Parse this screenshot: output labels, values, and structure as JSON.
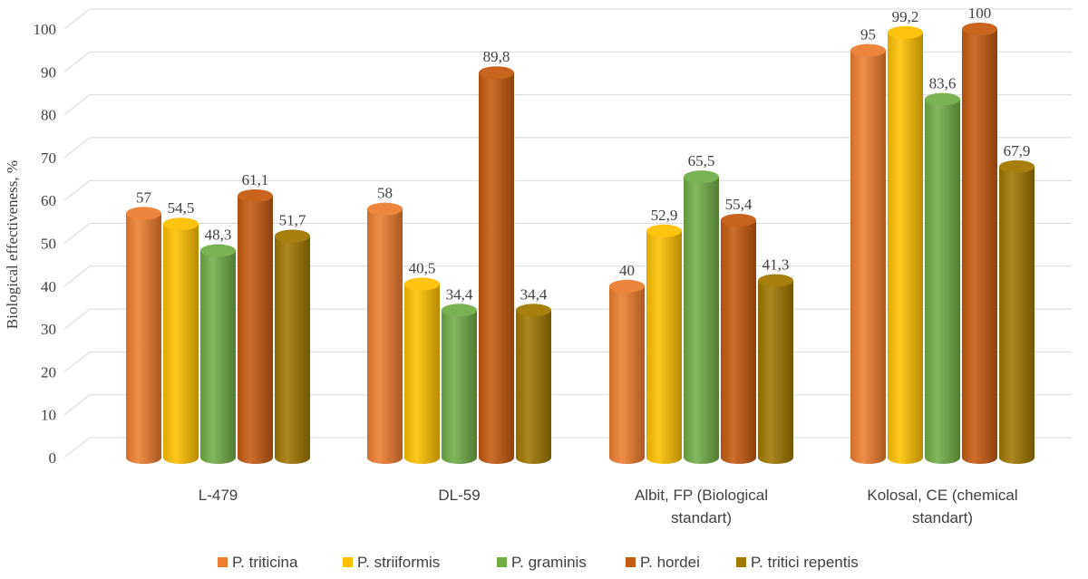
{
  "chart_data": {
    "type": "bar",
    "title": "",
    "xlabel": "",
    "ylabel": "Biological effectiveness, %",
    "ylim": [
      0,
      100
    ],
    "yticks": [
      0,
      10,
      20,
      30,
      40,
      50,
      60,
      70,
      80,
      90,
      100
    ],
    "grid": true,
    "legend_position": "bottom",
    "style": "3d-cylinder",
    "categories": [
      [
        "L-479"
      ],
      [
        "DL-59"
      ],
      [
        "Albit, FP (Biological",
        "standart)"
      ],
      [
        "Kolosal, CE (chemical",
        "standart)"
      ]
    ],
    "series": [
      {
        "name": "P. triticina",
        "color": "#ED7D31",
        "values": [
          57,
          58,
          40,
          95
        ],
        "labels": [
          "57",
          "58",
          "40",
          "95"
        ]
      },
      {
        "name": "P. striiformis",
        "color": "#FFC000",
        "values": [
          54.5,
          40.5,
          52.9,
          99.2
        ],
        "labels": [
          "54,5",
          "40,5",
          "52,9",
          "99,2"
        ]
      },
      {
        "name": "P. graminis",
        "color": "#70AD47",
        "values": [
          48.3,
          34.4,
          65.5,
          83.6
        ],
        "labels": [
          "48,3",
          "34,4",
          "65,5",
          "83,6"
        ]
      },
      {
        "name": "P. hordei",
        "color": "#C55A11",
        "values": [
          61.1,
          89.8,
          55.4,
          100
        ],
        "labels": [
          "61,1",
          "89,8",
          "55,4",
          "100"
        ]
      },
      {
        "name": "P. tritici repentis",
        "color": "#A07800",
        "values": [
          51.7,
          34.4,
          41.3,
          67.9
        ],
        "labels": [
          "51,7",
          "34,4",
          "41,3",
          "67,9"
        ]
      }
    ]
  }
}
